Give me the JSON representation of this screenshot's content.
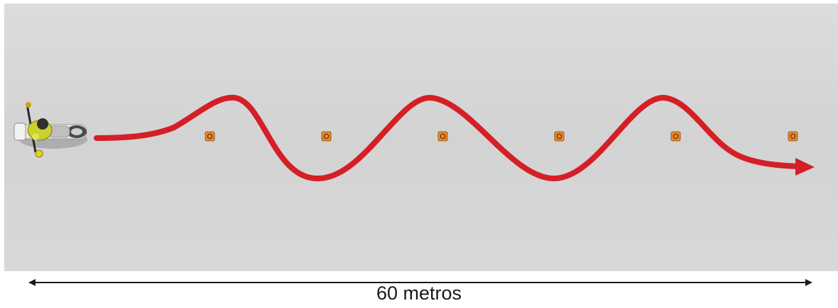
{
  "measurement": {
    "label": "60 metros"
  },
  "course": {
    "cone_count": 6,
    "path_color": "#d51f26",
    "cone_color": "#e8892a",
    "pavement_color": "#d4d4d4"
  },
  "icons": {
    "rider": "motorcycle-rider-icon",
    "cone": "traffic-cone-icon",
    "arrow": "double-headed-arrow-icon"
  }
}
